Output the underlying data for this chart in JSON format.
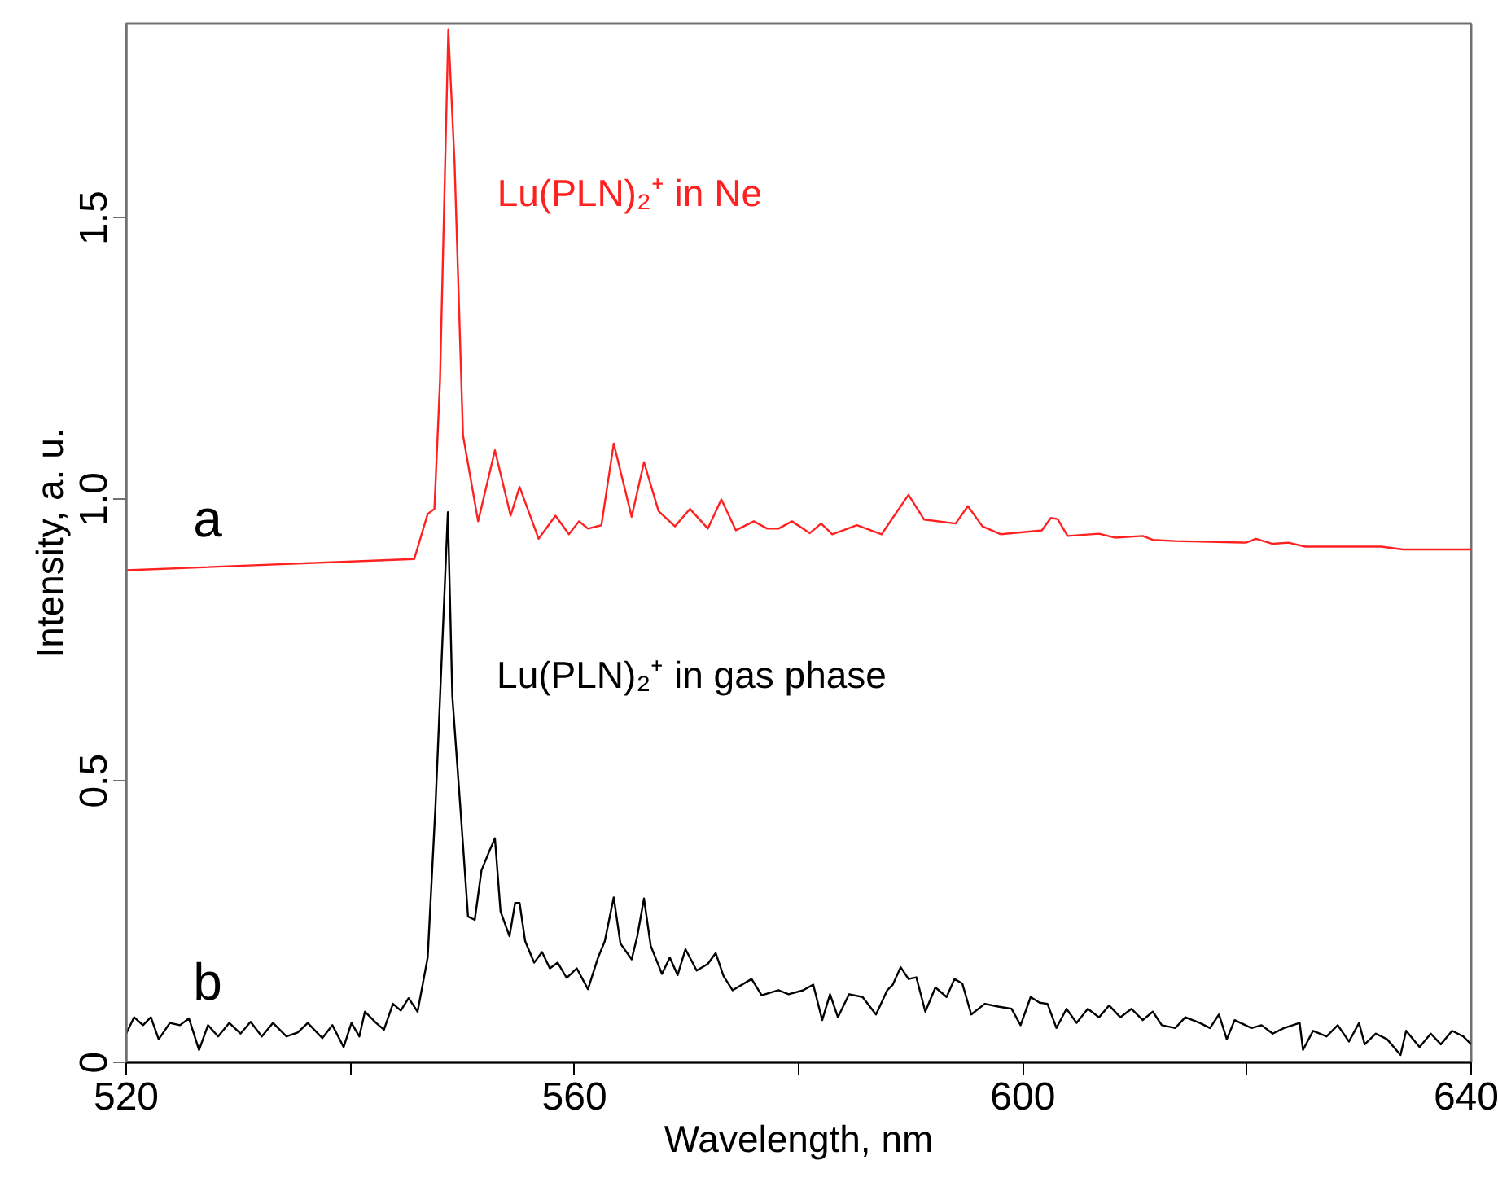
{
  "chart_data": {
    "type": "line",
    "xlabel": "Wavelength, nm",
    "ylabel": "Intensity, a. u.",
    "xlim": [
      520,
      640
    ],
    "ylim": [
      0,
      1.845
    ],
    "xticks": [
      520,
      {
        "value": 540,
        "label": null
      },
      560,
      {
        "value": 580,
        "label": null
      },
      600,
      {
        "value": 620,
        "label": null
      },
      640
    ],
    "yticks": [
      0,
      0.5,
      {
        "value": 1,
        "label": "1.0"
      },
      {
        "value": 1.5,
        "label": "1.5"
      }
    ],
    "grid": false,
    "line_style": "solid",
    "annotations": [
      "a",
      "b"
    ],
    "series": [
      {
        "name": "Lu(PLN)₂⁺ in Ne",
        "color": "#ff2020",
        "x": [
          520,
          545.7,
          546.9,
          547.5,
          548.0,
          548.74,
          549.3,
          550.05,
          551.4,
          552.9,
          554.3,
          555.1,
          556.8,
          558.3,
          559.5,
          560.4,
          561.2,
          562.4,
          563.5,
          565.1,
          566.2,
          567.5,
          568.96,
          570.3,
          571.9,
          573.1,
          574.4,
          576.0,
          577.2,
          578.2,
          579.4,
          581.0,
          582.0,
          583.0,
          585.2,
          587.4,
          589.8,
          591.2,
          594.0,
          595.1,
          596.4,
          598.05,
          601.7,
          602.5,
          603.1,
          604.0,
          606.8,
          608.2,
          610.7,
          611.6,
          613.6,
          619.9,
          620.8,
          622.3,
          623.7,
          625.2,
          632.0,
          633.9,
          640
        ],
        "values": [
          0.874,
          0.894,
          0.974,
          0.983,
          1.21,
          1.834,
          1.597,
          1.114,
          0.961,
          1.087,
          0.971,
          1.022,
          0.93,
          0.971,
          0.938,
          0.961,
          0.948,
          0.954,
          1.099,
          0.969,
          1.066,
          0.979,
          0.952,
          0.983,
          0.948,
          1.0,
          0.945,
          0.961,
          0.948,
          0.948,
          0.961,
          0.94,
          0.957,
          0.938,
          0.954,
          0.938,
          1.008,
          0.964,
          0.957,
          0.988,
          0.952,
          0.938,
          0.945,
          0.967,
          0.965,
          0.935,
          0.939,
          0.932,
          0.935,
          0.928,
          0.926,
          0.923,
          0.93,
          0.921,
          0.923,
          0.916,
          0.916,
          0.911,
          0.911
        ]
      },
      {
        "name": "Lu(PLN)₂⁺ in gas phase",
        "color": "#000000",
        "x": [
          520,
          520.7,
          521.5,
          522.2,
          522.9,
          523.9,
          524.8,
          525.6,
          526.5,
          527.3,
          528.2,
          529.2,
          530.2,
          531.1,
          532.1,
          533.1,
          534.3,
          535.3,
          536.2,
          537.5,
          538.4,
          539.4,
          540.1,
          540.8,
          541.3,
          542.3,
          543.0,
          543.8,
          544.5,
          545.2,
          546.0,
          546.9,
          547.6,
          548.7,
          549.1,
          549.8,
          550.5,
          551.1,
          551.7,
          552.4,
          552.9,
          553.4,
          554.2,
          554.7,
          555.1,
          555.6,
          556.4,
          557.1,
          557.8,
          558.5,
          559.3,
          560.2,
          561.2,
          562.1,
          562.7,
          563.5,
          564.1,
          565.1,
          565.6,
          566.2,
          566.8,
          567.8,
          568.5,
          569.2,
          569.9,
          570.9,
          571.9,
          572.6,
          573.3,
          574.1,
          575.8,
          576.7,
          578.2,
          579.1,
          580.4,
          581.3,
          582.1,
          582.8,
          583.5,
          584.5,
          585.7,
          586.9,
          587.9,
          588.4,
          589.1,
          589.8,
          590.5,
          591.3,
          592.2,
          593.2,
          593.9,
          594.6,
          595.4,
          596.6,
          597.8,
          599.0,
          599.8,
          600.7,
          601.5,
          602.2,
          603.0,
          603.9,
          604.8,
          605.8,
          606.8,
          607.7,
          608.7,
          609.7,
          610.7,
          611.6,
          612.4,
          613.6,
          614.5,
          615.8,
          616.7,
          617.5,
          618.2,
          618.9,
          620.4,
          621.3,
          622.3,
          623.3,
          624.7,
          625.0,
          625.9,
          627.1,
          628.1,
          629.1,
          630.0,
          630.5,
          631.5,
          632.5,
          633.7,
          634.2,
          635.4,
          636.4,
          637.3,
          638.3,
          639.3,
          640
        ],
        "values": [
          0.051,
          0.08,
          0.066,
          0.08,
          0.041,
          0.07,
          0.066,
          0.078,
          0.022,
          0.066,
          0.046,
          0.07,
          0.051,
          0.072,
          0.046,
          0.07,
          0.046,
          0.053,
          0.07,
          0.043,
          0.066,
          0.027,
          0.07,
          0.046,
          0.09,
          0.07,
          0.058,
          0.104,
          0.092,
          0.114,
          0.09,
          0.186,
          0.457,
          0.977,
          0.65,
          0.457,
          0.259,
          0.253,
          0.341,
          0.375,
          0.398,
          0.268,
          0.224,
          0.283,
          0.283,
          0.215,
          0.177,
          0.196,
          0.167,
          0.177,
          0.15,
          0.167,
          0.13,
          0.186,
          0.215,
          0.293,
          0.211,
          0.183,
          0.224,
          0.291,
          0.207,
          0.157,
          0.186,
          0.155,
          0.201,
          0.163,
          0.175,
          0.194,
          0.153,
          0.128,
          0.148,
          0.119,
          0.128,
          0.121,
          0.128,
          0.138,
          0.075,
          0.121,
          0.08,
          0.121,
          0.116,
          0.085,
          0.128,
          0.138,
          0.169,
          0.148,
          0.151,
          0.09,
          0.133,
          0.116,
          0.148,
          0.14,
          0.085,
          0.104,
          0.099,
          0.095,
          0.066,
          0.116,
          0.106,
          0.104,
          0.061,
          0.095,
          0.07,
          0.095,
          0.08,
          0.101,
          0.08,
          0.095,
          0.075,
          0.09,
          0.066,
          0.061,
          0.08,
          0.07,
          0.061,
          0.085,
          0.041,
          0.075,
          0.061,
          0.066,
          0.051,
          0.061,
          0.07,
          0.022,
          0.056,
          0.046,
          0.066,
          0.037,
          0.07,
          0.032,
          0.051,
          0.041,
          0.013,
          0.056,
          0.027,
          0.051,
          0.032,
          0.056,
          0.046,
          0.032
        ]
      }
    ]
  }
}
